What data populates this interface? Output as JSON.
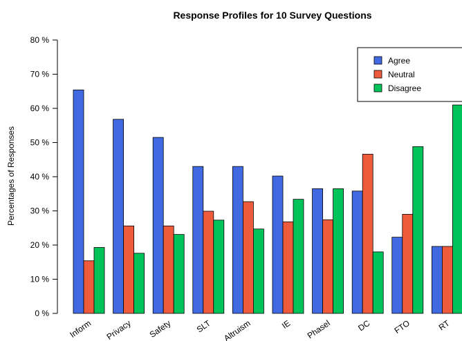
{
  "chart_data": {
    "type": "bar",
    "title": "Response Profiles for 10 Survey Questions",
    "ylabel": "Percentages of Responses",
    "xlabel": "",
    "ylim": [
      0,
      80
    ],
    "yticks": [
      0,
      10,
      20,
      30,
      40,
      50,
      60,
      70,
      80
    ],
    "ytick_labels": [
      "0 %",
      "10 %",
      "20 %",
      "30 %",
      "40 %",
      "50 %",
      "60 %",
      "70 %",
      "80 %"
    ],
    "categories": [
      "Inform",
      "Privacy",
      "Safety",
      "SLT",
      "Altruism",
      "IE",
      "Phasel",
      "DC",
      "FTO",
      "RT"
    ],
    "series": [
      {
        "name": "Agree",
        "color": "#4169E1",
        "values": [
          65.4,
          56.8,
          51.5,
          43.0,
          43.0,
          40.2,
          36.5,
          35.8,
          22.3,
          19.6
        ]
      },
      {
        "name": "Neutral",
        "color": "#EE5A3C",
        "values": [
          15.4,
          25.6,
          25.6,
          29.9,
          32.7,
          26.8,
          27.4,
          46.6,
          29.0,
          19.6
        ]
      },
      {
        "name": "Disagree",
        "color": "#00C45A",
        "values": [
          19.3,
          17.6,
          23.1,
          27.3,
          24.7,
          33.4,
          36.5,
          18.0,
          48.8,
          61.0
        ]
      }
    ],
    "legend_position": "top-right",
    "grid": false
  }
}
